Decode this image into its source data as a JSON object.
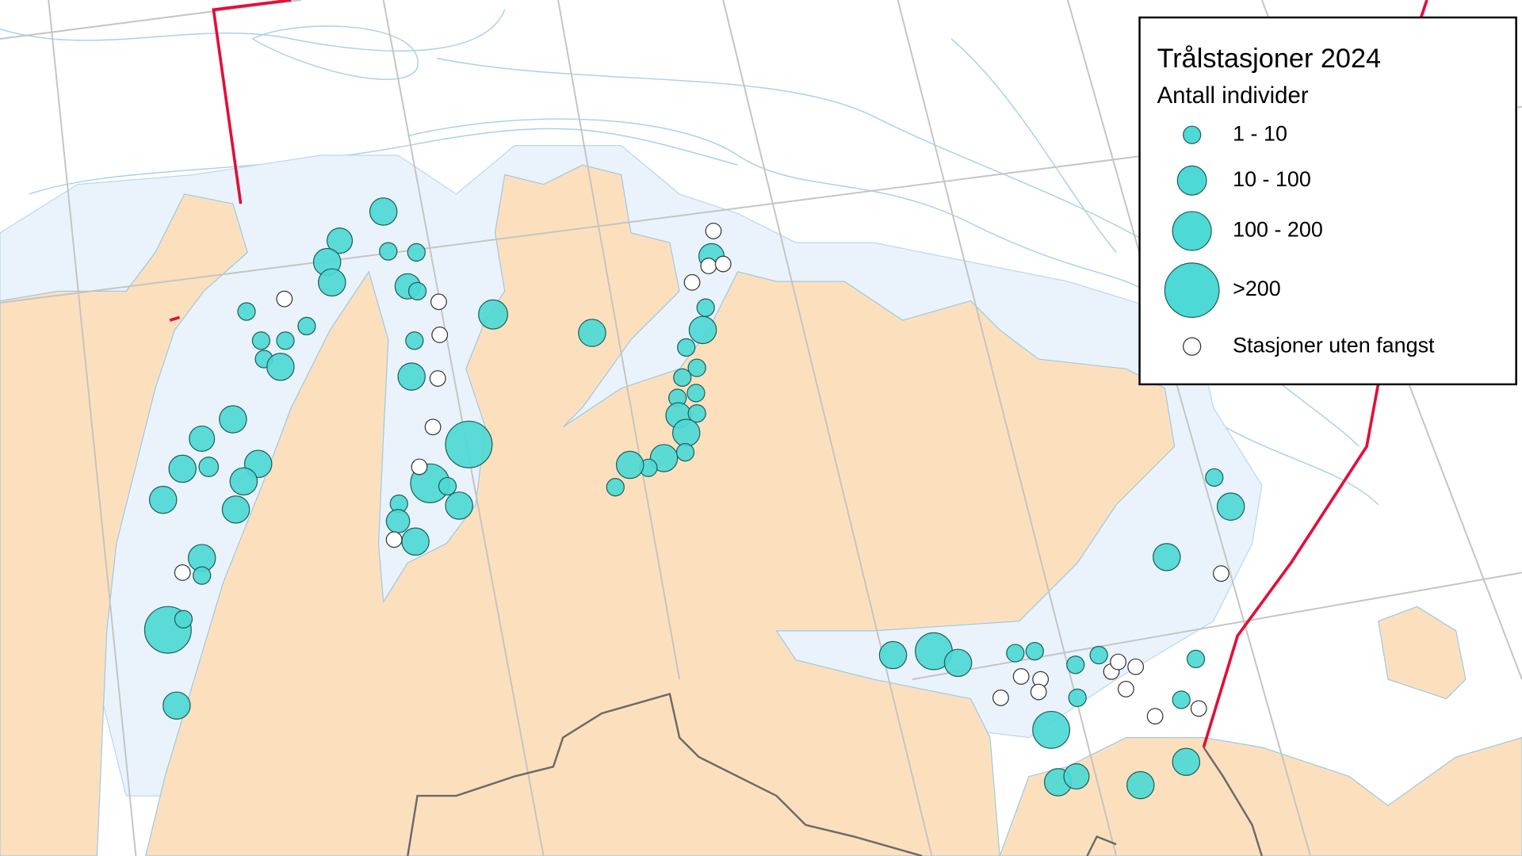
{
  "legend": {
    "title": "Trålstasjoner 2024",
    "subtitle": "Antall individer",
    "items": [
      "1 - 10",
      "10 - 100",
      "100 - 200",
      ">200",
      "Stasjoner uten fangst"
    ]
  }
}
